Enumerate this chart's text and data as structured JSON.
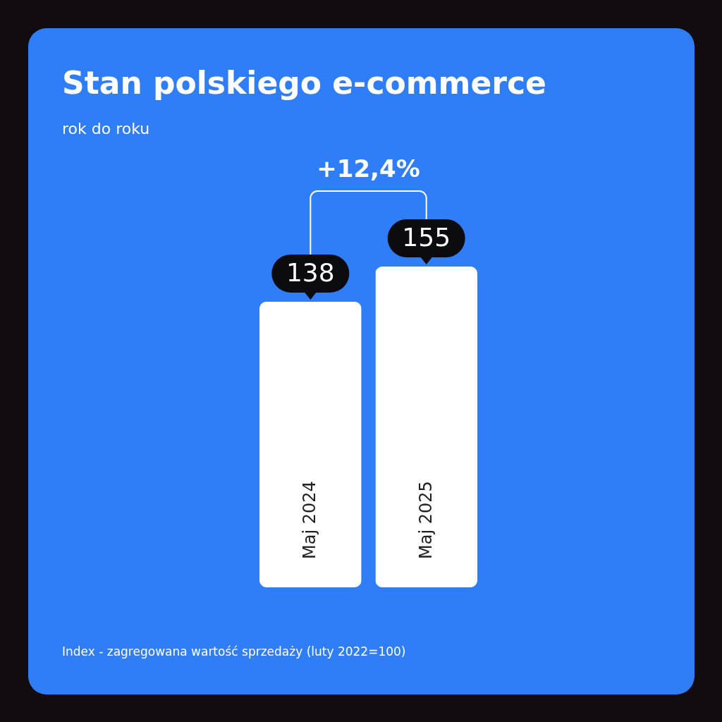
{
  "chart_data": {
    "type": "bar",
    "title": "Stan polskiego e-commerce",
    "subtitle": "rok do roku",
    "categories": [
      "Maj 2024",
      "Maj 2025"
    ],
    "values": [
      138,
      155
    ],
    "color": "#ffffff",
    "data_labels": true,
    "annotations": [
      "+12,4%",
      "Index - zagregowana wartość sprzedaży (luty 2022=100)"
    ]
  }
}
